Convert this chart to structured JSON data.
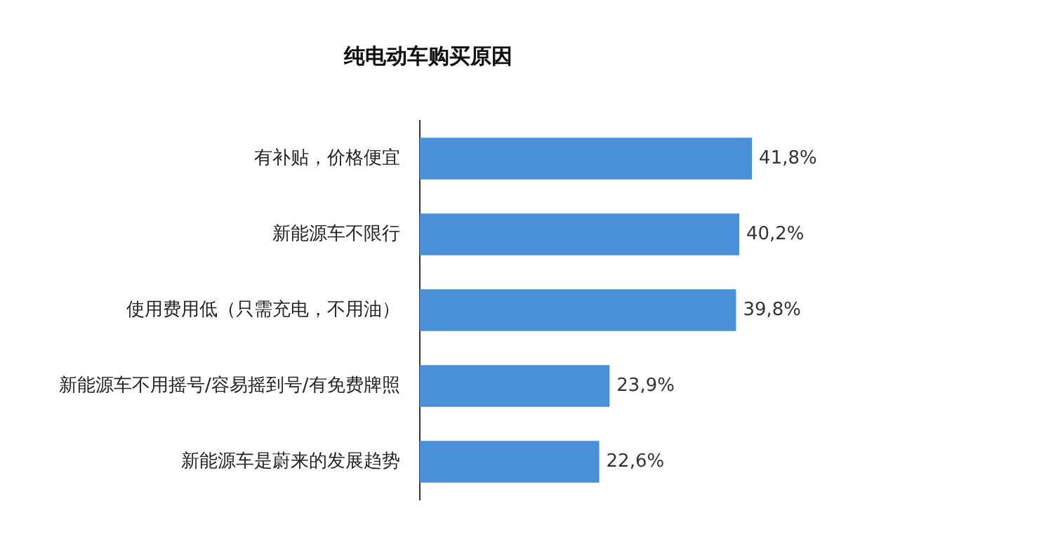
{
  "chart_data": {
    "type": "bar",
    "orientation": "horizontal",
    "title": "纯电动车购买原因",
    "categories": [
      "有补贴，价格便宜",
      "新能源车不限行",
      "使用费用低（只需充电，不用油）",
      "新能源车不用摇号/容易摇到号/有免费牌照",
      "新能源车是蔚来的发展趋势"
    ],
    "values": [
      41.8,
      40.2,
      39.8,
      23.9,
      22.6
    ],
    "value_labels": [
      "41,8%",
      "40,2%",
      "39,8%",
      "23,9%",
      "22,6%"
    ],
    "color": "#4a90d9",
    "tick_labels": "y"
  }
}
